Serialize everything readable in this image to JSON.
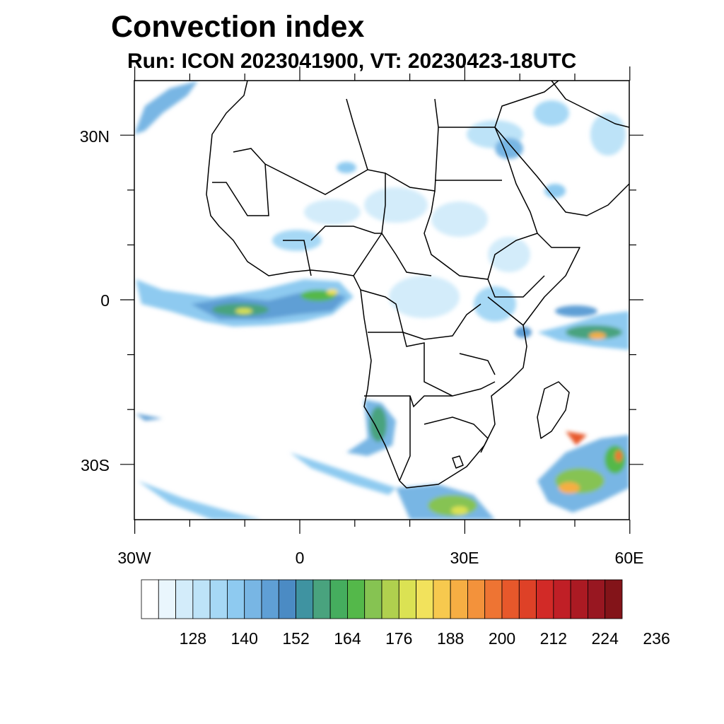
{
  "title": "Convection index",
  "subtitle": "Run: ICON 2023041900,  VT: 20230423-18UTC",
  "map": {
    "extent": {
      "lon_min": -30,
      "lon_max": 60,
      "lat_min": -40,
      "lat_max": 40
    },
    "lat_labels": [
      "30N",
      "0",
      "30S"
    ],
    "lon_labels": [
      "30W",
      "0",
      "30E",
      "60E"
    ]
  },
  "colorbar": {
    "colors": [
      "#ffffff",
      "#eaf6fd",
      "#d3ecfa",
      "#bde3f8",
      "#a6d8f5",
      "#8ecaf0",
      "#78b6e4",
      "#5f9fd5",
      "#4b8bc4",
      "#3f93a1",
      "#49a37e",
      "#45ad5e",
      "#54b84a",
      "#86c352",
      "#b0d04e",
      "#dbe253",
      "#f2e25c",
      "#f7c94e",
      "#f6ae43",
      "#f3923b",
      "#ee7433",
      "#e7582b",
      "#de4127",
      "#d22a27",
      "#c01f26",
      "#ab1a23",
      "#981721",
      "#831419"
    ],
    "labels": [
      "128",
      "140",
      "152",
      "164",
      "176",
      "188",
      "200",
      "212",
      "224",
      "236"
    ]
  }
}
